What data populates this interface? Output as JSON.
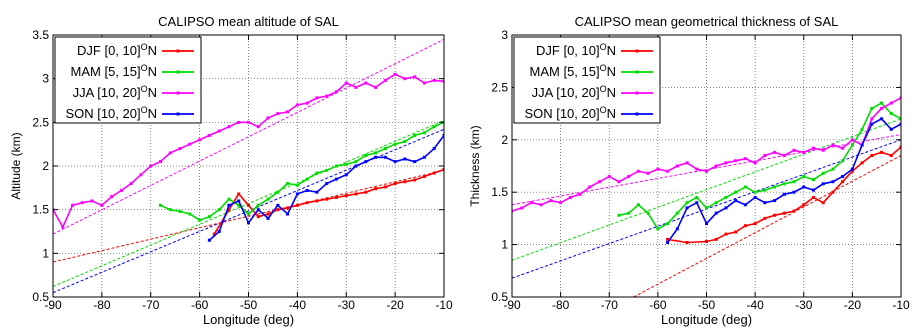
{
  "chart_data": [
    {
      "type": "line",
      "title": "CALIPSO mean altitude of SAL",
      "xlabel": "Longitude (deg)",
      "ylabel": "Altitude (km)",
      "xlim": [
        -90,
        -10
      ],
      "ylim": [
        0.5,
        3.5
      ],
      "xticks": [
        "-90",
        "-80",
        "-70",
        "-60",
        "-50",
        "-40",
        "-30",
        "-20",
        "-10"
      ],
      "yticks": [
        "0.5",
        "1",
        "1.5",
        "2",
        "2.5",
        "3",
        "3.5"
      ],
      "grid": true,
      "legend_position": "top-left",
      "series": [
        {
          "name": "DJF [0, 10]",
          "color": "#ff0000",
          "x": [
            -57,
            -54,
            -52,
            -50,
            -48,
            -46,
            -44,
            -42,
            -40,
            -38,
            -36,
            -34,
            -32,
            -30,
            -28,
            -26,
            -24,
            -22,
            -20,
            -18,
            -16,
            -14,
            -12,
            -10
          ],
          "y": [
            1.22,
            1.5,
            1.68,
            1.55,
            1.42,
            1.45,
            1.5,
            1.52,
            1.55,
            1.58,
            1.6,
            1.62,
            1.64,
            1.66,
            1.68,
            1.7,
            1.74,
            1.76,
            1.8,
            1.82,
            1.84,
            1.88,
            1.92,
            1.96
          ],
          "fit": [
            [
              -90,
              0.9
            ],
            [
              -10,
              1.95
            ]
          ]
        },
        {
          "name": "MAM [5, 15]",
          "color": "#00dd00",
          "x": [
            -68,
            -66,
            -64,
            -62,
            -60,
            -58,
            -56,
            -54,
            -52,
            -50,
            -48,
            -46,
            -44,
            -42,
            -40,
            -38,
            -36,
            -34,
            -32,
            -30,
            -28,
            -26,
            -24,
            -22,
            -20,
            -18,
            -16,
            -14,
            -12,
            -10
          ],
          "y": [
            1.55,
            1.5,
            1.48,
            1.45,
            1.38,
            1.42,
            1.5,
            1.62,
            1.55,
            1.45,
            1.55,
            1.62,
            1.7,
            1.8,
            1.78,
            1.85,
            1.92,
            1.95,
            2.0,
            2.02,
            2.05,
            2.12,
            2.15,
            2.2,
            2.25,
            2.28,
            2.35,
            2.38,
            2.45,
            2.5
          ],
          "fit": [
            [
              -90,
              0.62
            ],
            [
              -10,
              2.52
            ]
          ]
        },
        {
          "name": "JJA [10, 20]",
          "color": "#ff00ff",
          "x": [
            -90,
            -88,
            -86,
            -84,
            -82,
            -80,
            -78,
            -76,
            -74,
            -72,
            -70,
            -68,
            -66,
            -64,
            -62,
            -60,
            -58,
            -56,
            -54,
            -52,
            -50,
            -48,
            -46,
            -44,
            -42,
            -40,
            -38,
            -36,
            -34,
            -32,
            -30,
            -28,
            -26,
            -24,
            -22,
            -20,
            -18,
            -16,
            -14,
            -12,
            -10
          ],
          "y": [
            1.5,
            1.3,
            1.55,
            1.58,
            1.6,
            1.55,
            1.65,
            1.72,
            1.8,
            1.9,
            2.0,
            2.05,
            2.15,
            2.2,
            2.25,
            2.3,
            2.35,
            2.4,
            2.45,
            2.5,
            2.5,
            2.45,
            2.55,
            2.6,
            2.62,
            2.7,
            2.72,
            2.78,
            2.8,
            2.85,
            2.95,
            2.9,
            2.95,
            2.9,
            2.98,
            3.05,
            3.0,
            3.02,
            2.95,
            2.98,
            2.97
          ],
          "fit": [
            [
              -90,
              1.22
            ],
            [
              -10,
              3.45
            ]
          ]
        },
        {
          "name": "SON [10, 20]",
          "color": "#0000ff",
          "x": [
            -58,
            -56,
            -54,
            -52,
            -50,
            -48,
            -46,
            -44,
            -42,
            -40,
            -38,
            -36,
            -34,
            -32,
            -30,
            -28,
            -26,
            -24,
            -22,
            -20,
            -18,
            -16,
            -14,
            -12,
            -10
          ],
          "y": [
            1.15,
            1.25,
            1.55,
            1.6,
            1.35,
            1.5,
            1.4,
            1.55,
            1.45,
            1.68,
            1.72,
            1.7,
            1.8,
            1.85,
            1.9,
            2.0,
            2.05,
            2.1,
            2.1,
            2.05,
            2.08,
            2.05,
            2.1,
            2.2,
            2.35
          ],
          "fit": [
            [
              -90,
              0.55
            ],
            [
              -10,
              2.42
            ]
          ]
        }
      ]
    },
    {
      "type": "line",
      "title": "CALIPSO mean geometrical thickness of SAL",
      "xlabel": "Longitude (deg)",
      "ylabel": "Thickness (km)",
      "xlim": [
        -90,
        -10
      ],
      "ylim": [
        0.5,
        3
      ],
      "xticks": [
        "-90",
        "-80",
        "-70",
        "-60",
        "-50",
        "-40",
        "-30",
        "-20",
        "-10"
      ],
      "yticks": [
        "0.5",
        "1",
        "1.5",
        "2",
        "2.5",
        "3"
      ],
      "grid": true,
      "legend_position": "top-left",
      "series": [
        {
          "name": "DJF [0, 10]",
          "color": "#ff0000",
          "x": [
            -58,
            -54,
            -50,
            -48,
            -46,
            -44,
            -42,
            -40,
            -38,
            -36,
            -34,
            -32,
            -30,
            -28,
            -26,
            -24,
            -22,
            -20,
            -18,
            -16,
            -14,
            -12,
            -10
          ],
          "y": [
            1.05,
            1.02,
            1.03,
            1.05,
            1.1,
            1.12,
            1.18,
            1.2,
            1.25,
            1.28,
            1.3,
            1.32,
            1.38,
            1.45,
            1.4,
            1.5,
            1.6,
            1.7,
            1.78,
            1.85,
            1.88,
            1.85,
            1.93
          ],
          "fit": [
            [
              -65,
              0.5
            ],
            [
              -10,
              1.85
            ]
          ]
        },
        {
          "name": "MAM [5, 15]",
          "color": "#00dd00",
          "x": [
            -68,
            -66,
            -64,
            -62,
            -60,
            -58,
            -56,
            -54,
            -52,
            -50,
            -48,
            -46,
            -44,
            -42,
            -40,
            -38,
            -36,
            -34,
            -32,
            -30,
            -28,
            -26,
            -24,
            -22,
            -20,
            -18,
            -16,
            -14,
            -12,
            -10
          ],
          "y": [
            1.28,
            1.3,
            1.38,
            1.3,
            1.15,
            1.2,
            1.3,
            1.4,
            1.45,
            1.35,
            1.4,
            1.45,
            1.5,
            1.55,
            1.5,
            1.52,
            1.55,
            1.58,
            1.6,
            1.65,
            1.62,
            1.68,
            1.72,
            1.8,
            1.95,
            2.1,
            2.3,
            2.35,
            2.25,
            2.2
          ],
          "fit": [
            [
              -90,
              0.85
            ],
            [
              -10,
              2.2
            ]
          ]
        },
        {
          "name": "JJA [10, 20]",
          "color": "#ff00ff",
          "x": [
            -90,
            -88,
            -86,
            -84,
            -82,
            -80,
            -78,
            -76,
            -74,
            -72,
            -70,
            -68,
            -66,
            -64,
            -62,
            -60,
            -58,
            -56,
            -54,
            -52,
            -50,
            -48,
            -46,
            -44,
            -42,
            -40,
            -38,
            -36,
            -34,
            -32,
            -30,
            -28,
            -26,
            -24,
            -22,
            -20,
            -18,
            -16,
            -14,
            -12,
            -10
          ],
          "y": [
            1.32,
            1.35,
            1.4,
            1.38,
            1.42,
            1.4,
            1.45,
            1.48,
            1.55,
            1.6,
            1.65,
            1.6,
            1.65,
            1.7,
            1.68,
            1.72,
            1.7,
            1.75,
            1.78,
            1.72,
            1.7,
            1.75,
            1.78,
            1.8,
            1.82,
            1.78,
            1.85,
            1.88,
            1.85,
            1.9,
            1.88,
            1.92,
            1.9,
            1.95,
            1.92,
            2.0,
            1.95,
            2.2,
            2.3,
            2.35,
            2.4
          ],
          "fit": [
            [
              -90,
              1.38
            ],
            [
              -10,
              2.05
            ]
          ]
        },
        {
          "name": "SON [10, 20]",
          "color": "#0000ff",
          "x": [
            -58,
            -56,
            -54,
            -52,
            -50,
            -48,
            -46,
            -44,
            -42,
            -40,
            -38,
            -36,
            -34,
            -32,
            -30,
            -28,
            -26,
            -24,
            -22,
            -20,
            -18,
            -16,
            -14,
            -12,
            -10
          ],
          "y": [
            1.02,
            1.15,
            1.35,
            1.4,
            1.2,
            1.3,
            1.35,
            1.42,
            1.38,
            1.45,
            1.4,
            1.42,
            1.48,
            1.5,
            1.55,
            1.52,
            1.58,
            1.6,
            1.65,
            1.72,
            1.95,
            2.15,
            2.2,
            2.1,
            2.15
          ],
          "fit": [
            [
              -90,
              0.68
            ],
            [
              -10,
              2.0
            ]
          ]
        }
      ]
    }
  ],
  "legend_superscript": "O",
  "legend_suffix": "N"
}
